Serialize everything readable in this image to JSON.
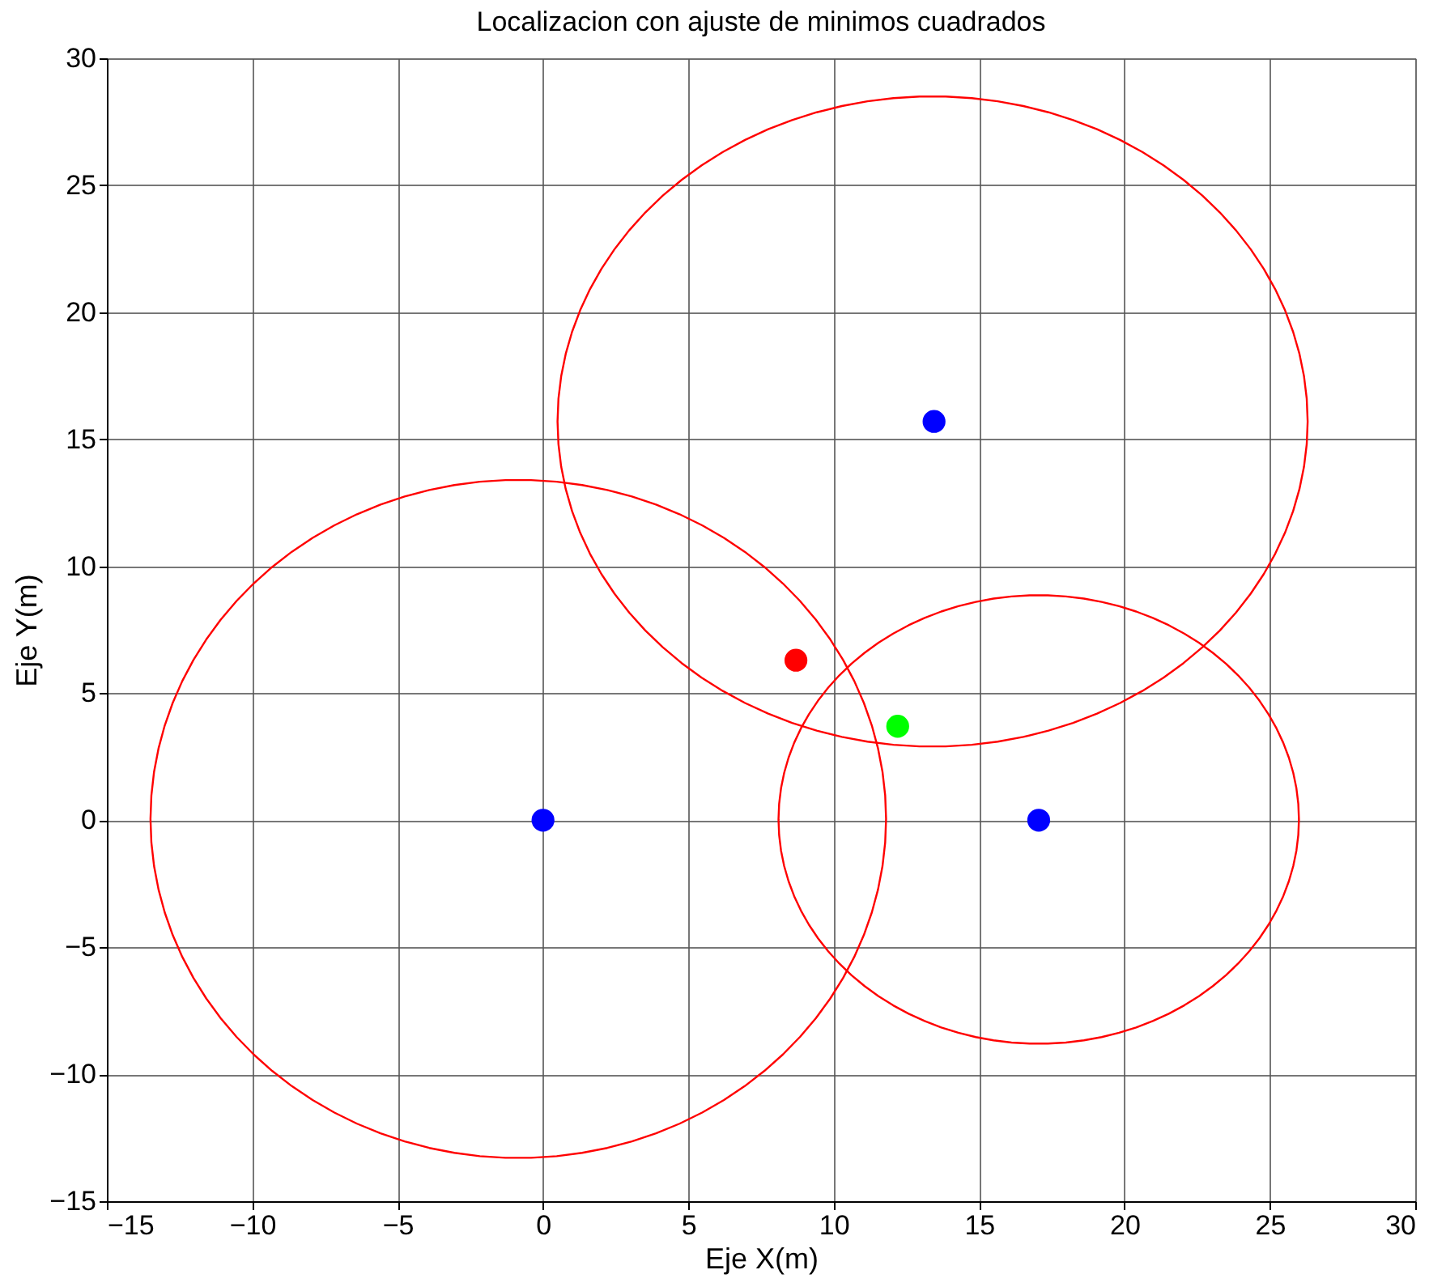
{
  "chart_data": {
    "type": "scatter",
    "title": "Localizacion con ajuste de minimos cuadrados",
    "xlabel": "Eje X(m)",
    "ylabel": "Eje Y(m)",
    "xlim": [
      -15,
      30
    ],
    "ylim": [
      -15,
      30
    ],
    "xticks": [
      -15,
      -10,
      -5,
      0,
      5,
      10,
      15,
      20,
      25,
      30
    ],
    "yticks": [
      -15,
      -10,
      -5,
      0,
      5,
      10,
      15,
      20,
      25,
      30
    ],
    "grid": true,
    "marker": "circle",
    "series": [
      {
        "type": "scatter",
        "color": "#0000ff",
        "x": [
          0,
          17.05,
          13.45
        ],
        "values": [
          0,
          0,
          15.7
        ]
      },
      {
        "type": "scatter",
        "color": "#ff0000",
        "x": [
          8.7
        ],
        "values": [
          6.3
        ]
      },
      {
        "type": "scatter",
        "color": "#00ff00",
        "x": [
          12.2
        ],
        "values": [
          3.7
        ]
      }
    ]
  }
}
